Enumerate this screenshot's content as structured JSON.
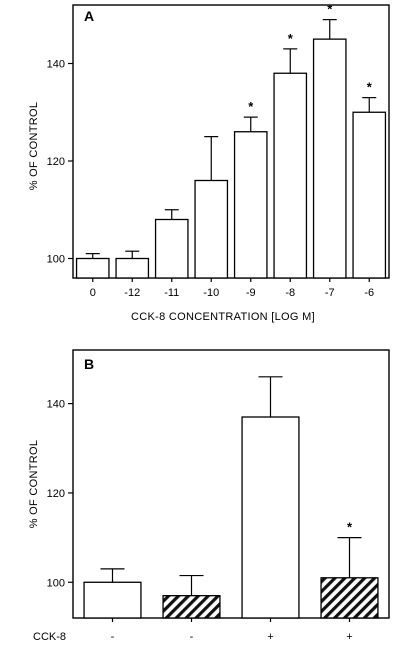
{
  "chart_data": [
    {
      "type": "bar",
      "panel_label": "A",
      "categories": [
        "0",
        "-12",
        "-11",
        "-10",
        "-9",
        "-8",
        "-7",
        "-6"
      ],
      "values": [
        100,
        100,
        108,
        116,
        126,
        138,
        145,
        130
      ],
      "errors": [
        1,
        1.5,
        2,
        9,
        3,
        5,
        4,
        3
      ],
      "significant": [
        false,
        false,
        false,
        false,
        true,
        true,
        true,
        true
      ],
      "significance_marker": "*",
      "ylabel": "% OF CONTROL",
      "xlabel": "CCK-8 CONCENTRATION  [LOG M]",
      "yticks": [
        "100",
        "120",
        "140"
      ],
      "ylim": [
        96,
        152
      ]
    },
    {
      "type": "bar",
      "panel_label": "B",
      "categories": [
        "-",
        "-",
        "+",
        "+"
      ],
      "category_row_label": "CCK-8",
      "values": [
        100,
        97,
        137,
        101
      ],
      "errors": [
        3,
        4.5,
        9,
        9
      ],
      "hatched": [
        false,
        true,
        false,
        true
      ],
      "significant": [
        false,
        false,
        false,
        true
      ],
      "significance_marker": "*",
      "ylabel": "% OF CONTROL",
      "yticks": [
        "100",
        "120",
        "140"
      ],
      "ylim": [
        92,
        152
      ]
    }
  ]
}
